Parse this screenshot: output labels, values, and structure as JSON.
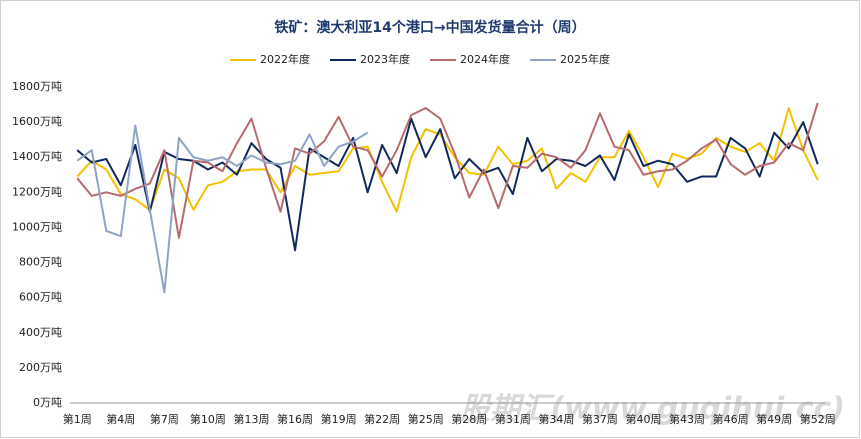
{
  "chart_data": {
    "type": "line",
    "title": "铁矿：澳大利亚14个港口→中国发货量合计（周）",
    "categories": [
      "第1周",
      null,
      null,
      "第4周",
      null,
      null,
      "第7周",
      null,
      null,
      "第10周",
      null,
      null,
      "第13周",
      null,
      null,
      "第16周",
      null,
      null,
      "第19周",
      null,
      null,
      "第22周",
      null,
      null,
      "第25周",
      null,
      null,
      "第28周",
      null,
      null,
      "第31周",
      null,
      null,
      "第34周",
      null,
      null,
      "第37周",
      null,
      null,
      "第40周",
      null,
      null,
      "第43周",
      null,
      null,
      "第46周",
      null,
      null,
      "第49周",
      null,
      null,
      "第52周"
    ],
    "series": [
      {
        "name": "2022年度",
        "color": "#f5c000",
        "values": [
          1290,
          1380,
          1330,
          1190,
          1160,
          1100,
          1330,
          1280,
          1100,
          1240,
          1260,
          1320,
          1330,
          1330,
          1200,
          1350,
          1300,
          1310,
          1320,
          1450,
          1460,
          1260,
          1090,
          1400,
          1560,
          1530,
          1400,
          1310,
          1300,
          1460,
          1360,
          1380,
          1450,
          1220,
          1310,
          1260,
          1400,
          1400,
          1550,
          1400,
          1230,
          1420,
          1390,
          1420,
          1510,
          1460,
          1430,
          1480,
          1380,
          1680,
          1440,
          1270
        ]
      },
      {
        "name": "2023年度",
        "color": "#0f2a5c",
        "values": [
          1440,
          1370,
          1390,
          1240,
          1470,
          1090,
          1430,
          1390,
          1380,
          1330,
          1370,
          1300,
          1480,
          1390,
          1340,
          870,
          1450,
          1400,
          1350,
          1510,
          1200,
          1470,
          1310,
          1620,
          1400,
          1560,
          1280,
          1390,
          1310,
          1340,
          1190,
          1510,
          1320,
          1390,
          1380,
          1350,
          1410,
          1270,
          1530,
          1350,
          1380,
          1360,
          1260,
          1290,
          1290,
          1510,
          1450,
          1290,
          1540,
          1450,
          1600,
          1360
        ]
      },
      {
        "name": "2024年度",
        "color": "#b86b6e",
        "values": [
          1280,
          1180,
          1200,
          1180,
          1220,
          1250,
          1440,
          940,
          1380,
          1370,
          1320,
          1480,
          1620,
          1340,
          1090,
          1450,
          1420,
          1490,
          1630,
          1460,
          1440,
          1290,
          1440,
          1640,
          1680,
          1620,
          1420,
          1170,
          1330,
          1110,
          1350,
          1340,
          1420,
          1400,
          1340,
          1440,
          1650,
          1460,
          1440,
          1300,
          1320,
          1330,
          1380,
          1450,
          1500,
          1360,
          1300,
          1350,
          1370,
          1480,
          1440,
          1710
        ]
      },
      {
        "name": "2025年度",
        "color": "#8ea4c4",
        "values": [
          1380,
          1440,
          980,
          950,
          1580,
          1100,
          630,
          1510,
          1400,
          1380,
          1400,
          1350,
          1410,
          1370,
          1360,
          1380,
          1530,
          1350,
          1460,
          1490,
          1540,
          null,
          null,
          null,
          null,
          null,
          null,
          null,
          null,
          null,
          null,
          null,
          null,
          null,
          null,
          null,
          null,
          null,
          null,
          null,
          null,
          null,
          null,
          null,
          null,
          null,
          null,
          null,
          null,
          null,
          null,
          null
        ]
      }
    ],
    "ylim": [
      0,
      1800
    ],
    "yticks": [
      {
        "value": 0,
        "label": "0万吨"
      },
      {
        "value": 200,
        "label": "200万吨"
      },
      {
        "value": 400,
        "label": "400万吨"
      },
      {
        "value": 600,
        "label": "600万吨"
      },
      {
        "value": 800,
        "label": "800万吨"
      },
      {
        "value": 1000,
        "label": "1000万吨"
      },
      {
        "value": 1200,
        "label": "1200万吨"
      },
      {
        "value": 1400,
        "label": "1400万吨"
      },
      {
        "value": 1600,
        "label": "1600万吨"
      },
      {
        "value": 1800,
        "label": "1800万吨"
      }
    ],
    "grid": false,
    "legend": "top",
    "watermark": "股期汇(www.guqihui.cc)"
  }
}
